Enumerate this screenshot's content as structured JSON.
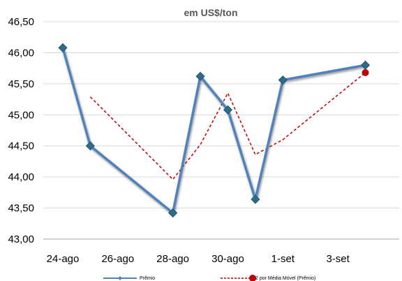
{
  "chart_data": {
    "type": "line",
    "title": "",
    "subtitle": "em US$/ton",
    "xlabel": "",
    "ylabel": "",
    "x_tick_labels": [
      "24-ago",
      "26-ago",
      "28-ago",
      "30-ago",
      "1-set",
      "3-set"
    ],
    "y_tick_labels": [
      "43,00",
      "43,50",
      "44,00",
      "44,50",
      "45,00",
      "45,50",
      "46,00",
      "46,50"
    ],
    "ylim": [
      43.0,
      46.5
    ],
    "grid": "horizontal",
    "legend_position": "bottom",
    "series": [
      {
        "name": "Prêmio",
        "color": "#4f81bd",
        "marker": "diamond",
        "x": [
          "24-ago",
          "25-ago",
          "28-ago",
          "29-ago",
          "30-ago",
          "31-ago",
          "1-set",
          "4-set"
        ],
        "values": [
          46.08,
          44.5,
          43.42,
          45.62,
          45.08,
          43.64,
          45.56,
          45.8
        ]
      },
      {
        "name": "2 por Média Móvel (Prêmio)",
        "color": "#c00000",
        "style": "dashed",
        "x": [
          "25-ago",
          "28-ago",
          "29-ago",
          "30-ago",
          "31-ago",
          "1-set",
          "4-set"
        ],
        "values": [
          45.29,
          43.96,
          44.52,
          45.35,
          44.36,
          44.6,
          45.68
        ]
      }
    ]
  }
}
